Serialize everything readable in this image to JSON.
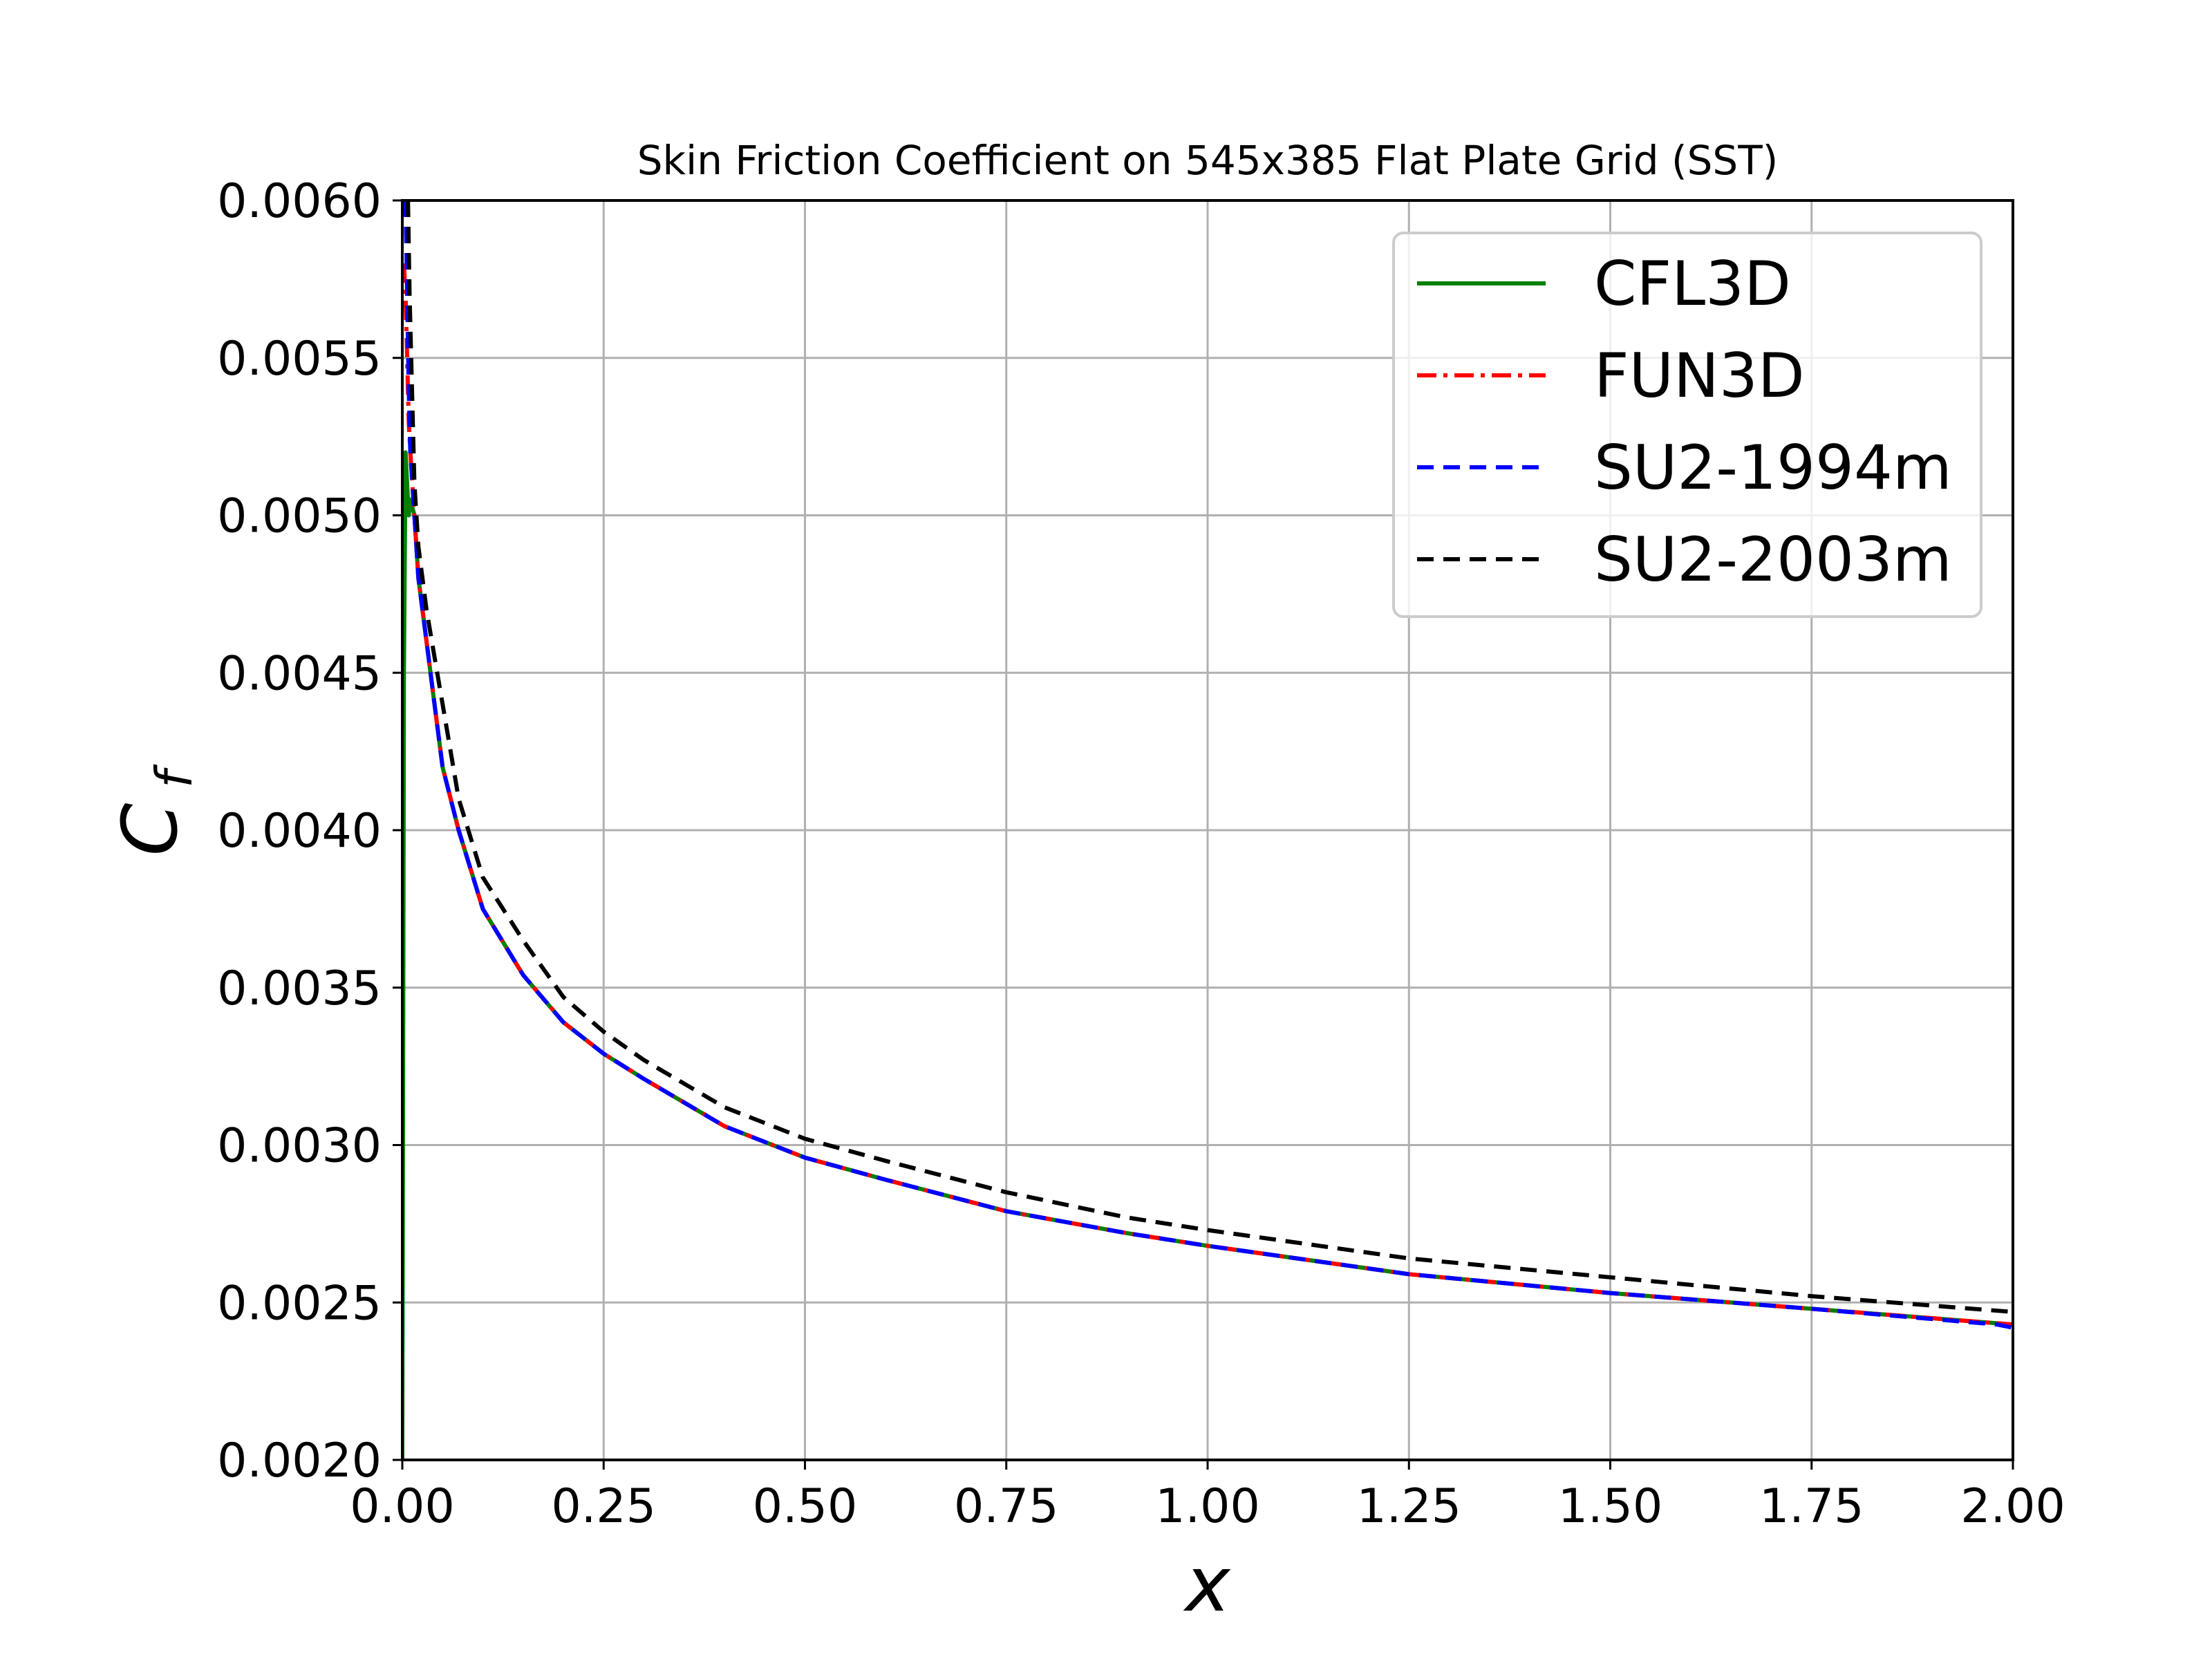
{
  "chart_data": {
    "type": "line",
    "title": "Skin Friction Coefficient on 545x385 Flat Plate Grid (SST)",
    "xlabel": "x",
    "ylabel_main": "C",
    "ylabel_sub": "f",
    "xlim": [
      0.0,
      2.0
    ],
    "ylim": [
      0.002,
      0.006
    ],
    "x_ticks": [
      "0.00",
      "0.25",
      "0.50",
      "0.75",
      "1.00",
      "1.25",
      "1.50",
      "1.75",
      "2.00"
    ],
    "y_ticks": [
      "0.0020",
      "0.0025",
      "0.0030",
      "0.0035",
      "0.0040",
      "0.0045",
      "0.0050",
      "0.0055",
      "0.0060"
    ],
    "grid": true,
    "legend_position": "top-right",
    "series": [
      {
        "name": "CFL3D",
        "color": "#008000",
        "style": "solid",
        "x": [
          0.0,
          0.002,
          0.004,
          0.006,
          0.008,
          0.01,
          0.015,
          0.02,
          0.03,
          0.04,
          0.05,
          0.07,
          0.1,
          0.15,
          0.2,
          0.25,
          0.3,
          0.4,
          0.5,
          0.6,
          0.75,
          0.9,
          1.0,
          1.25,
          1.5,
          1.75,
          2.0
        ],
        "y": [
          0.002,
          0.0045,
          0.0052,
          0.0051,
          0.005,
          0.00505,
          0.005,
          0.0048,
          0.0046,
          0.0044,
          0.0042,
          0.004,
          0.00375,
          0.00354,
          0.00339,
          0.00329,
          0.00321,
          0.00306,
          0.00296,
          0.00289,
          0.00279,
          0.00272,
          0.00268,
          0.00259,
          0.00253,
          0.00248,
          0.00243
        ]
      },
      {
        "name": "FUN3D",
        "color": "#ff0000",
        "style": "dashdot",
        "x": [
          0.002,
          0.004,
          0.006,
          0.008,
          0.01,
          0.015,
          0.02,
          0.03,
          0.04,
          0.05,
          0.07,
          0.1,
          0.15,
          0.2,
          0.25,
          0.3,
          0.4,
          0.5,
          0.6,
          0.75,
          0.9,
          1.0,
          1.25,
          1.5,
          1.75,
          2.0
        ],
        "y": [
          0.0058,
          0.0057,
          0.0055,
          0.0053,
          0.0052,
          0.005,
          0.0048,
          0.0046,
          0.0044,
          0.0042,
          0.004,
          0.00375,
          0.00354,
          0.00339,
          0.00329,
          0.00321,
          0.00306,
          0.00296,
          0.00289,
          0.00279,
          0.00272,
          0.00268,
          0.00259,
          0.00253,
          0.00248,
          0.00243
        ]
      },
      {
        "name": "SU2-1994m",
        "color": "#0000ff",
        "style": "dashed",
        "x": [
          0.004,
          0.006,
          0.008,
          0.01,
          0.015,
          0.02,
          0.03,
          0.04,
          0.05,
          0.07,
          0.1,
          0.15,
          0.2,
          0.25,
          0.3,
          0.4,
          0.5,
          0.6,
          0.75,
          0.9,
          1.0,
          1.25,
          1.5,
          1.75,
          1.98,
          2.0
        ],
        "y": [
          0.006,
          0.0057,
          0.0054,
          0.0052,
          0.005,
          0.0048,
          0.0046,
          0.0044,
          0.0042,
          0.004,
          0.00375,
          0.00354,
          0.00339,
          0.00329,
          0.00321,
          0.00306,
          0.00296,
          0.00289,
          0.00279,
          0.00272,
          0.00268,
          0.00259,
          0.00253,
          0.00248,
          0.00243,
          0.00242
        ]
      },
      {
        "name": "SU2-2003m",
        "color": "#000000",
        "style": "dashed",
        "x": [
          0.007,
          0.009,
          0.012,
          0.015,
          0.02,
          0.03,
          0.04,
          0.05,
          0.07,
          0.1,
          0.15,
          0.2,
          0.25,
          0.3,
          0.4,
          0.5,
          0.6,
          0.75,
          0.9,
          1.0,
          1.25,
          1.5,
          1.75,
          2.0
        ],
        "y": [
          0.006,
          0.0057,
          0.0054,
          0.0051,
          0.0049,
          0.0047,
          0.00455,
          0.0044,
          0.0041,
          0.00385,
          0.00365,
          0.00347,
          0.00336,
          0.00327,
          0.00312,
          0.00302,
          0.00295,
          0.00285,
          0.00277,
          0.00273,
          0.00264,
          0.00258,
          0.00252,
          0.00247
        ]
      }
    ]
  }
}
